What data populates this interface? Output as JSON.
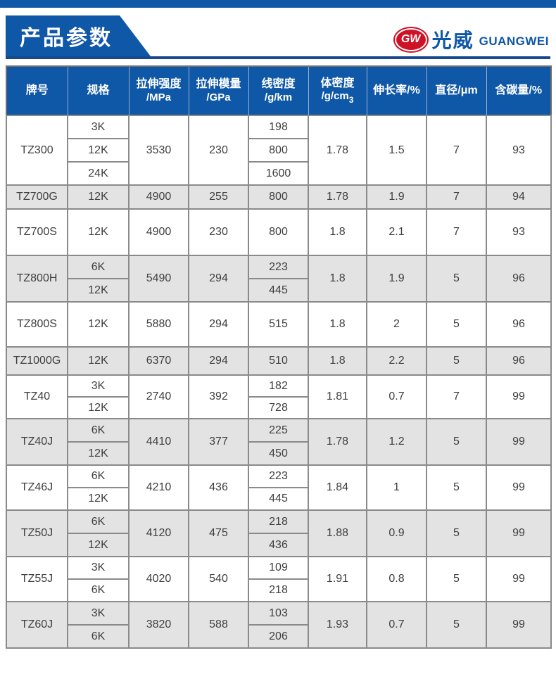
{
  "page": {
    "title": "产品参数",
    "brand": {
      "logo_initials": "GW",
      "name_cn": "光威",
      "name_en": "GUANGWEI"
    },
    "colors": {
      "primary_blue": "#0f57a7",
      "rule_blue": "#17498f",
      "row_shade": "#e3e3e3",
      "border_gray": "#8a8a8a",
      "logo_red": "#cf1126",
      "text_dark": "#3f3f3f"
    }
  },
  "table": {
    "columns": [
      {
        "id": "model",
        "label": "牌号"
      },
      {
        "id": "spec",
        "label": "规格"
      },
      {
        "id": "strength",
        "label": "拉伸强度",
        "sub": "/MPa"
      },
      {
        "id": "modulus",
        "label": "拉伸模量",
        "sub": "/GPa"
      },
      {
        "id": "linear-density",
        "label": "线密度",
        "sub": "/g/km"
      },
      {
        "id": "bulk-density",
        "label": "体密度",
        "sub": "/g/cm",
        "sub_script": "3"
      },
      {
        "id": "elongation",
        "label": "伸长率/%"
      },
      {
        "id": "diameter",
        "label": "直径/μm"
      },
      {
        "id": "carbon",
        "label": "含碳量/%"
      }
    ],
    "rows": [
      {
        "model": "TZ300",
        "specs": [
          "3K",
          "12K",
          "24K"
        ],
        "strength": "3530",
        "modulus": "230",
        "linear_density": [
          "198",
          "800",
          "1600"
        ],
        "bulk_density": "1.78",
        "elongation": "1.5",
        "diameter": "7",
        "carbon": "93",
        "shaded": false,
        "sub_row_height": 33
      },
      {
        "model": "TZ700G",
        "specs": [
          "12K"
        ],
        "strength": "4900",
        "modulus": "255",
        "linear_density": [
          "800"
        ],
        "bulk_density": "1.78",
        "elongation": "1.9",
        "diameter": "7",
        "carbon": "94",
        "shaded": true,
        "sub_row_height": 34
      },
      {
        "model": "TZ700S",
        "specs": [
          "12K"
        ],
        "strength": "4900",
        "modulus": "230",
        "linear_density": [
          "800"
        ],
        "bulk_density": "1.8",
        "elongation": "2.1",
        "diameter": "7",
        "carbon": "93",
        "shaded": false,
        "sub_row_height": 66
      },
      {
        "model": "TZ800H",
        "specs": [
          "6K",
          "12K"
        ],
        "strength": "5490",
        "modulus": "294",
        "linear_density": [
          "223",
          "445"
        ],
        "bulk_density": "1.8",
        "elongation": "1.9",
        "diameter": "5",
        "carbon": "96",
        "shaded": true,
        "sub_row_height": 33
      },
      {
        "model": "TZ800S",
        "specs": [
          "12K"
        ],
        "strength": "5880",
        "modulus": "294",
        "linear_density": [
          "515"
        ],
        "bulk_density": "1.8",
        "elongation": "2",
        "diameter": "5",
        "carbon": "96",
        "shaded": false,
        "sub_row_height": 64
      },
      {
        "model": "TZ1000G",
        "specs": [
          "12K"
        ],
        "strength": "6370",
        "modulus": "294",
        "linear_density": [
          "510"
        ],
        "bulk_density": "1.8",
        "elongation": "2.2",
        "diameter": "5",
        "carbon": "96",
        "shaded": true,
        "sub_row_height": 40
      },
      {
        "model": "TZ40",
        "specs": [
          "3K",
          "12K"
        ],
        "strength": "2740",
        "modulus": "392",
        "linear_density": [
          "182",
          "728"
        ],
        "bulk_density": "1.81",
        "elongation": "0.7",
        "diameter": "7",
        "carbon": "99",
        "shaded": false,
        "sub_row_height": 31
      },
      {
        "model": "TZ40J",
        "specs": [
          "6K",
          "12K"
        ],
        "strength": "4410",
        "modulus": "377",
        "linear_density": [
          "225",
          "450"
        ],
        "bulk_density": "1.78",
        "elongation": "1.2",
        "diameter": "5",
        "carbon": "99",
        "shaded": true,
        "sub_row_height": 33
      },
      {
        "model": "TZ46J",
        "specs": [
          "6K",
          "12K"
        ],
        "strength": "4210",
        "modulus": "436",
        "linear_density": [
          "223",
          "445"
        ],
        "bulk_density": "1.84",
        "elongation": "1",
        "diameter": "5",
        "carbon": "99",
        "shaded": false,
        "sub_row_height": 32
      },
      {
        "model": "TZ50J",
        "specs": [
          "6K",
          "12K"
        ],
        "strength": "4120",
        "modulus": "475",
        "linear_density": [
          "218",
          "436"
        ],
        "bulk_density": "1.88",
        "elongation": "0.9",
        "diameter": "5",
        "carbon": "99",
        "shaded": true,
        "sub_row_height": 33
      },
      {
        "model": "TZ55J",
        "specs": [
          "3K",
          "6K"
        ],
        "strength": "4020",
        "modulus": "540",
        "linear_density": [
          "109",
          "218"
        ],
        "bulk_density": "1.91",
        "elongation": "0.8",
        "diameter": "5",
        "carbon": "99",
        "shaded": false,
        "sub_row_height": 32
      },
      {
        "model": "TZ60J",
        "specs": [
          "3K",
          "6K"
        ],
        "strength": "3820",
        "modulus": "588",
        "linear_density": [
          "103",
          "206"
        ],
        "bulk_density": "1.93",
        "elongation": "0.7",
        "diameter": "5",
        "carbon": "99",
        "shaded": true,
        "sub_row_height": 33
      }
    ]
  }
}
